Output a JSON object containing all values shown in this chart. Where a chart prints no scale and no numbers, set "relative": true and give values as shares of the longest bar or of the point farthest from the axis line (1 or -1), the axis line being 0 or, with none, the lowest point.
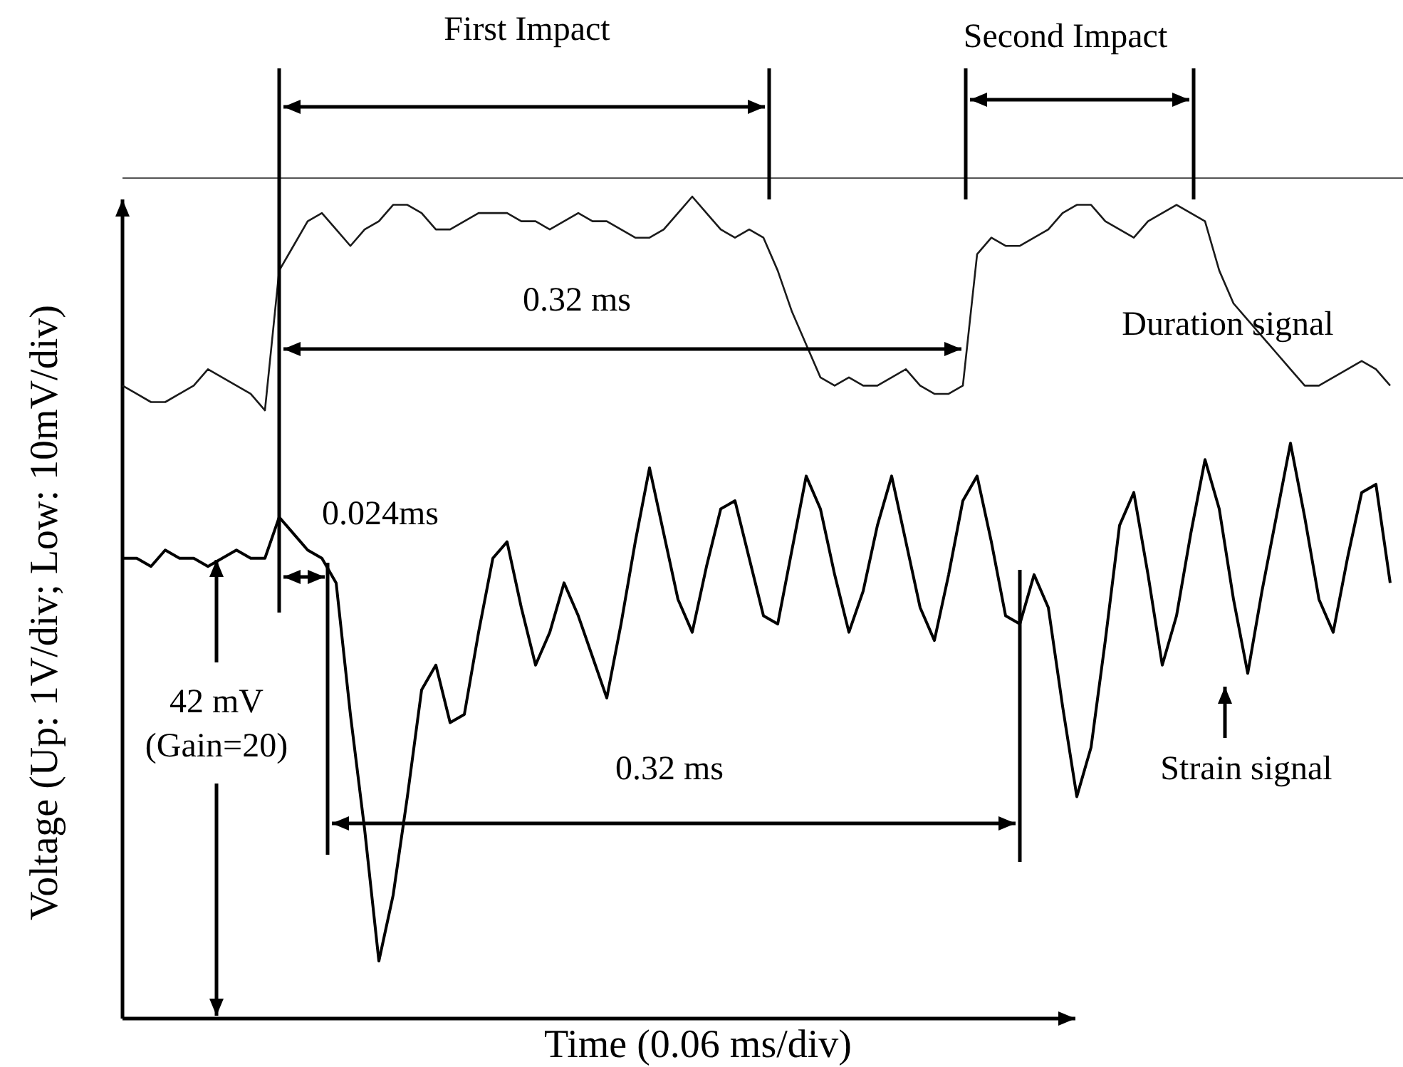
{
  "chart_data": {
    "type": "line",
    "relative": true,
    "xlabel": "Time (0.06 ms/div)",
    "ylabel": "Voltage (Up: 1V/div; Low: 10mV/div)",
    "categories": [
      null,
      null,
      null,
      null,
      null,
      null,
      null,
      null,
      null,
      null,
      null,
      null,
      null,
      null,
      null,
      null,
      null,
      null,
      null,
      null,
      null,
      null,
      null,
      null,
      null,
      null,
      null,
      null,
      null,
      null,
      null,
      null,
      null,
      null,
      null,
      null,
      null,
      null,
      null,
      null,
      null,
      null,
      null,
      null,
      null,
      null,
      null,
      null,
      null,
      null,
      null,
      null,
      null,
      null,
      null,
      null,
      null,
      null,
      null,
      null,
      null,
      null,
      null,
      null,
      null,
      null,
      null,
      null,
      null,
      null,
      null,
      null,
      null,
      null,
      null,
      null,
      null,
      null,
      null,
      null,
      null,
      null,
      null,
      null,
      null,
      null,
      null,
      null,
      null,
      null
    ],
    "series": [
      {
        "name": "Duration signal",
        "color": "#1a1a1a",
        "values": [
          0.77,
          0.76,
          0.75,
          0.75,
          0.76,
          0.77,
          0.79,
          0.78,
          0.77,
          0.76,
          0.74,
          0.91,
          0.94,
          0.97,
          0.98,
          0.96,
          0.94,
          0.96,
          0.97,
          0.99,
          0.99,
          0.98,
          0.96,
          0.96,
          0.97,
          0.98,
          0.98,
          0.98,
          0.97,
          0.97,
          0.96,
          0.97,
          0.98,
          0.97,
          0.97,
          0.96,
          0.95,
          0.95,
          0.96,
          0.98,
          1.0,
          0.98,
          0.96,
          0.95,
          0.96,
          0.95,
          0.91,
          0.86,
          0.82,
          0.78,
          0.77,
          0.78,
          0.77,
          0.77,
          0.78,
          0.79,
          0.77,
          0.76,
          0.76,
          0.77,
          0.93,
          0.95,
          0.94,
          0.94,
          0.95,
          0.96,
          0.98,
          0.99,
          0.99,
          0.97,
          0.96,
          0.95,
          0.97,
          0.98,
          0.99,
          0.98,
          0.97,
          0.91,
          0.87,
          0.85,
          0.83,
          0.81,
          0.79,
          0.77,
          0.77,
          0.78,
          0.79,
          0.8,
          0.79,
          0.77
        ]
      },
      {
        "name": "Strain signal",
        "color": "#000000",
        "values": [
          0.56,
          0.56,
          0.55,
          0.57,
          0.56,
          0.56,
          0.55,
          0.56,
          0.57,
          0.56,
          0.56,
          0.61,
          0.59,
          0.57,
          0.56,
          0.53,
          0.37,
          0.23,
          0.07,
          0.15,
          0.27,
          0.4,
          0.43,
          0.36,
          0.37,
          0.47,
          0.56,
          0.58,
          0.5,
          0.43,
          0.47,
          0.53,
          0.49,
          0.44,
          0.39,
          0.48,
          0.58,
          0.67,
          0.59,
          0.51,
          0.47,
          0.55,
          0.62,
          0.63,
          0.56,
          0.49,
          0.48,
          0.57,
          0.66,
          0.62,
          0.54,
          0.47,
          0.52,
          0.6,
          0.66,
          0.58,
          0.5,
          0.46,
          0.54,
          0.63,
          0.66,
          0.58,
          0.49,
          0.48,
          0.54,
          0.5,
          0.38,
          0.27,
          0.33,
          0.46,
          0.6,
          0.64,
          0.54,
          0.43,
          0.49,
          0.59,
          0.68,
          0.62,
          0.51,
          0.42,
          0.52,
          0.61,
          0.7,
          0.61,
          0.51,
          0.47,
          0.56,
          0.64,
          0.65,
          0.53
        ]
      }
    ],
    "annotations": [
      "First Impact",
      "Second Impact",
      "0.32 ms",
      "0.024ms",
      "42 mV",
      "(Gain=20)",
      "0.32 ms"
    ]
  }
}
